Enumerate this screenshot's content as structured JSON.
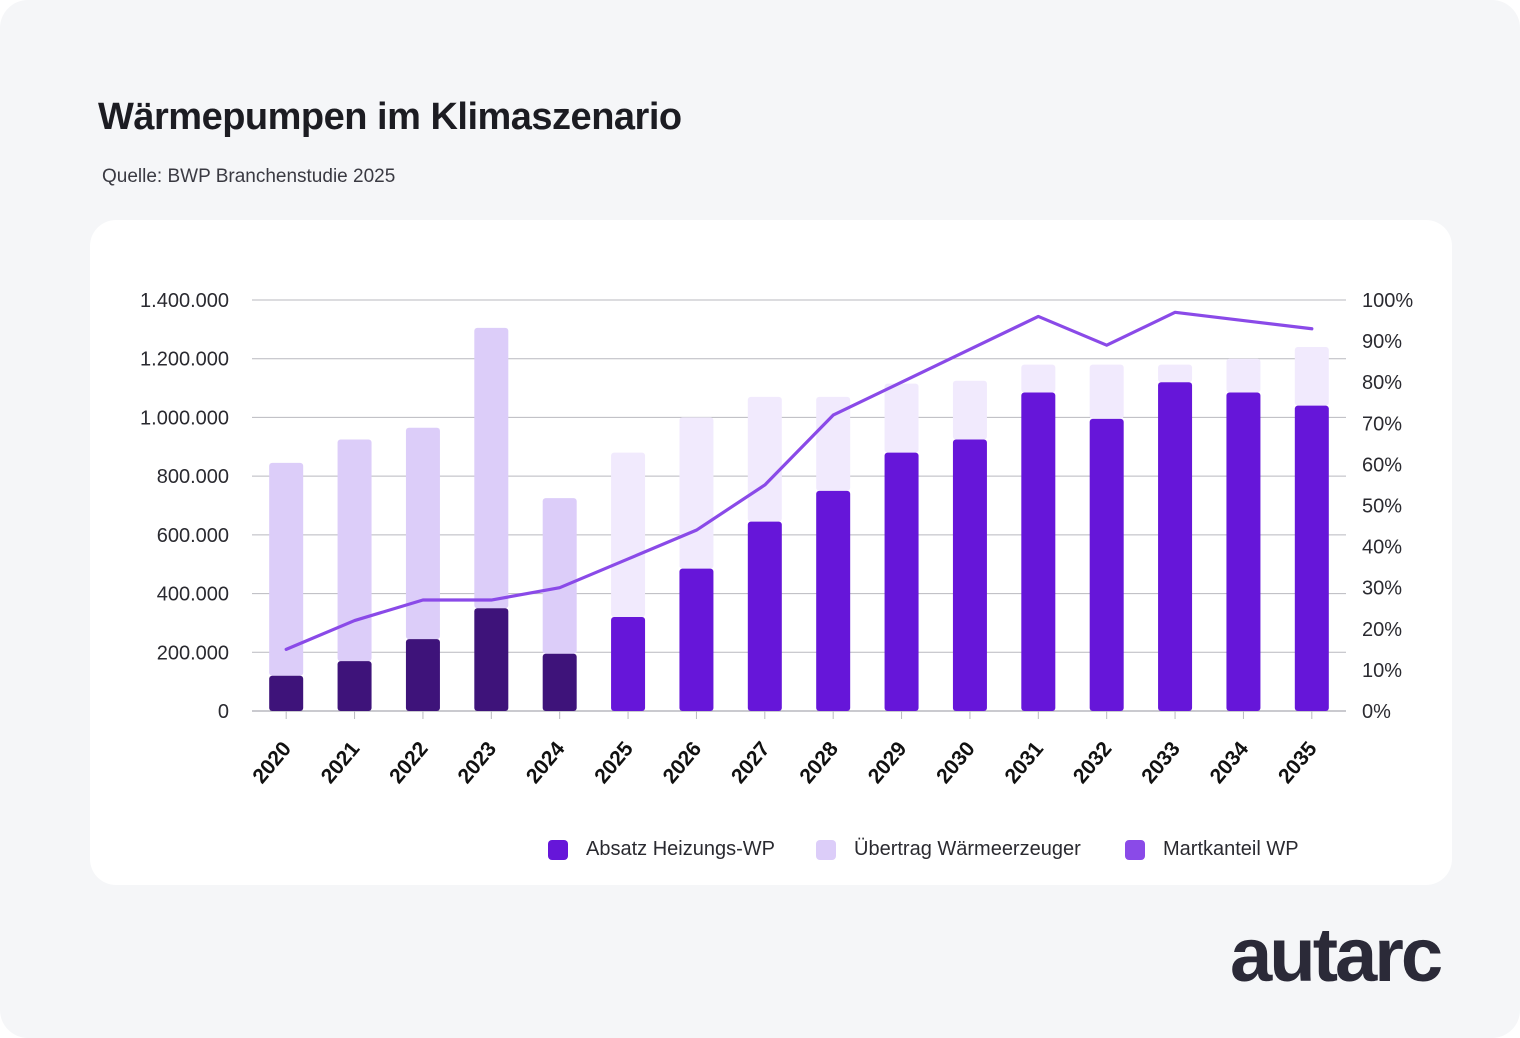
{
  "header": {
    "title": "Wärmepumpen im Klimaszenario",
    "source": "Quelle: BWP Branchenstudie 2025"
  },
  "logo": {
    "text": "autarc"
  },
  "colors": {
    "historic_bar": "#3e137a",
    "forecast_bar": "#6616d9",
    "transfer_historic": "#dccdf9",
    "transfer_forecast": "#f1eafd",
    "line": "#8a4ae8",
    "legend_transfer": "#dccdf9",
    "legend_line": "#8a4ae8",
    "grid": "#b9b9bf"
  },
  "legend": [
    {
      "label": "Absatz Heizungs-WP",
      "color": "#6616d9"
    },
    {
      "label": "Übertrag Wärmeerzeuger",
      "color": "#dccdf9"
    },
    {
      "label": "Martkanteil WP",
      "color": "#8a4ae8"
    }
  ],
  "chart_data": {
    "type": "bar",
    "categories": [
      "2020",
      "2021",
      "2022",
      "2023",
      "2024",
      "2025",
      "2026",
      "2027",
      "2028",
      "2029",
      "2030",
      "2031",
      "2032",
      "2033",
      "2034",
      "2035"
    ],
    "series": [
      {
        "name": "Absatz Heizungs-WP",
        "kind": "bar",
        "axis": "left",
        "values": [
          120000,
          170000,
          245000,
          350000,
          195000,
          320000,
          485000,
          645000,
          750000,
          880000,
          925000,
          1085000,
          995000,
          1120000,
          1085000,
          1040000
        ]
      },
      {
        "name": "Übertrag Wärmeerzeuger",
        "kind": "bar",
        "axis": "left",
        "stack_total": [
          845000,
          925000,
          965000,
          1305000,
          725000,
          880000,
          1000000,
          1070000,
          1070000,
          1115000,
          1125000,
          1180000,
          1180000,
          1180000,
          1200000,
          1240000
        ]
      },
      {
        "name": "Martkanteil WP",
        "kind": "line",
        "axis": "right",
        "values": [
          15,
          22,
          27,
          27,
          30,
          37,
          44,
          55,
          72,
          80,
          88,
          96,
          89,
          97,
          95,
          93
        ]
      }
    ],
    "yticks_left": [
      "0",
      "200.000",
      "400.000",
      "600.000",
      "800.000",
      "1.000.000",
      "1.200.000",
      "1.400.000"
    ],
    "yticks_right": [
      "0%",
      "10%",
      "20%",
      "30%",
      "40%",
      "50%",
      "60%",
      "70%",
      "80%",
      "90%",
      "100%"
    ],
    "ylim_left": [
      0,
      1400000
    ],
    "ylim_right": [
      0,
      100
    ],
    "historic_until": "2024",
    "grid": true,
    "legend_position": "bottom-right"
  }
}
